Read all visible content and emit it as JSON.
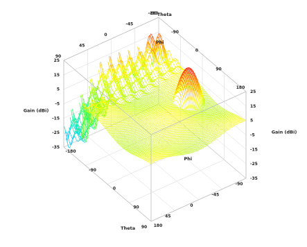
{
  "chart_data": {
    "type": "surface",
    "title": "",
    "axes": {
      "phi": {
        "label": "Phi",
        "ticks": [
          "-180",
          "-90",
          "0",
          "90",
          "180"
        ],
        "range": [
          -180,
          180
        ]
      },
      "theta": {
        "label": "Theta",
        "ticks": [
          "-90",
          "-45",
          "0",
          "45",
          "90"
        ],
        "range": [
          -90,
          90
        ]
      },
      "gain": {
        "label": "Gain (dBi)",
        "ticks": [
          "25",
          "15",
          "5",
          "-5",
          "-15",
          "-25",
          "-35"
        ],
        "range": [
          -35,
          25
        ]
      }
    },
    "colormap": [
      "#00c8ff",
      "#00ff80",
      "#80ff00",
      "#ffff00",
      "#ff8000",
      "#ff0000"
    ],
    "surface_features": {
      "main_lobe_peak_gain": 25,
      "side_lobe_gain": 18,
      "plateau_gain": 2,
      "min_gain": -35
    }
  }
}
